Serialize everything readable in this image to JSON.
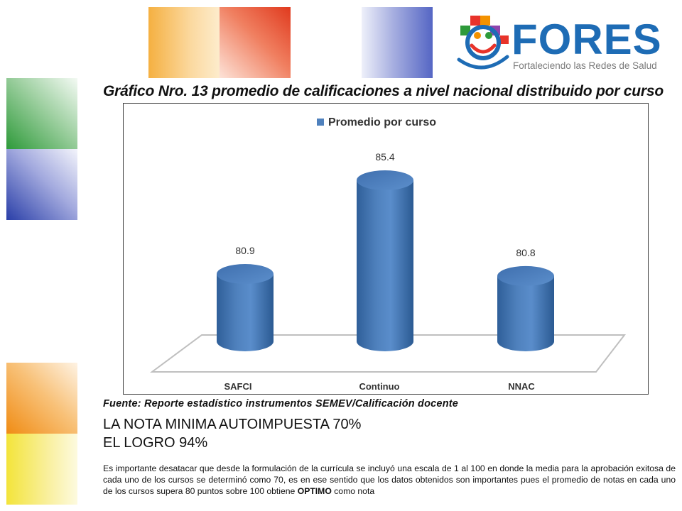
{
  "logo": {
    "name": "FORES",
    "tagline": "Fortaleciendo las Redes de Salud"
  },
  "title": "Gráfico Nro. 13  promedio de calificaciones a nivel nacional distribuido por curso",
  "chart_data": {
    "type": "bar",
    "style": "3d-cylinder",
    "categories": [
      "SAFCI",
      "Continuo",
      "NNAC"
    ],
    "series": [
      {
        "name": "Promedio por curso",
        "values": [
          80.9,
          85.4,
          80.8
        ],
        "color": "#4f81bd"
      }
    ],
    "data_labels": [
      "80.9",
      "85.4",
      "80.8"
    ],
    "legend": "top",
    "grid": false
  },
  "source": "Fuente: Reporte estadístico instrumentos SEMEV/Calificación docente",
  "note_min": "LA NOTA MINIMA AUTOIMPUESTA 70%",
  "note_achievement": "EL LOGRO 94%",
  "paragraph": {
    "text": "Es importante desatacar que desde la formulación de la currícula se incluyó una escala de 1 al 100 en donde la media para la aprobación exitosa de cada uno de los cursos se determinó como 70, es en ese sentido que los datos obtenidos son importantes pues el promedio de notas en cada uno de los cursos supera 80 puntos sobre 100 obtiene",
    "emphasis": "OPTIMO",
    "tail": "como nota"
  }
}
